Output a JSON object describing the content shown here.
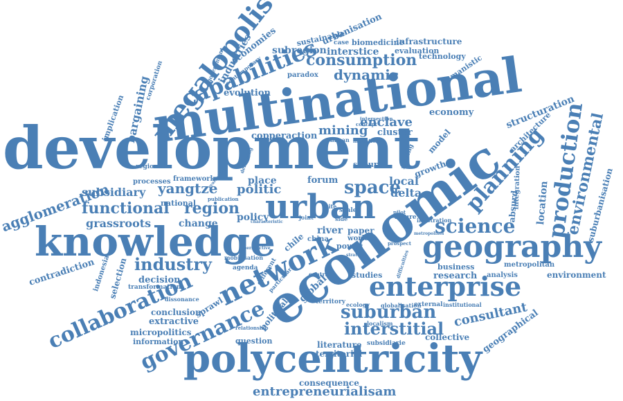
{
  "color": "#4a7fb5",
  "words": {
    "development": "development",
    "multinational": "multinational",
    "economic": "economic",
    "knowledge": "knowledge",
    "polycentricity": "polycentricity",
    "geography": "geography",
    "urban": "urban",
    "enterprise": "enterprise",
    "network": "network",
    "megalopolis": "megalopolis",
    "capabilities": "capabilities",
    "collaboration": "collaboration",
    "governance": "governance",
    "planning": "planning",
    "production": "production",
    "science": "science",
    "suburban": "suburban",
    "interstitial": "interstitial",
    "industry": "industry",
    "functional": "functional",
    "consumption": "consumption",
    "environmental": "environmental",
    "agglomeration": "agglomeration",
    "entrepreneurialisam": "entrepreneurialisam",
    "space": "space",
    "region": "region",
    "yangtze": "yangtze",
    "politic": "politic",
    "consultant": "consultant",
    "dynamic": "dynamic",
    "mining": "mining",
    "enclave": "enclave",
    "grassroots": "grassroots",
    "bargaining": "bargaining",
    "industries": "industries",
    "economies": "economies",
    "subregion": "subregion",
    "interstice": "interstice",
    "urbanisation": "urbanisation",
    "infrastructure": "infrastructure",
    "evaluation": "evaluation",
    "biomedicine": "biomedicine",
    "sustainable": "sustainable",
    "technology": "technology",
    "humanistic": "humanistic",
    "evolution": "evolution",
    "paradox": "paradox",
    "copperaction": "copperaction",
    "cluster": "cluster",
    "economy": "economy",
    "structuration": "structuration",
    "architecture": "architecture",
    "growth": "growth",
    "model": "model",
    "suburb": "suburb",
    "place": "place",
    "forum": "forum",
    "local": "local",
    "delta": "delta",
    "policy": "policy",
    "subsidiary": "subsidiary",
    "processes": "processes",
    "framework": "framework",
    "regional": "regional",
    "national": "national",
    "change": "change",
    "river": "river",
    "paper": "paper",
    "world": "world",
    "china": "china",
    "chile": "chile",
    "location": "location",
    "absurd": "absurd",
    "integration": "integration",
    "suburbanisation": "suburbanisation",
    "metropolitan": "metropolitan",
    "business": "business",
    "research": "research",
    "analysis": "analysis",
    "environment": "environment",
    "contradiction": "contradiction",
    "indonesia": "indonesia",
    "selection": "selection",
    "decision": "decision",
    "transformation": "transformation",
    "conclusion": "conclusion",
    "extractive": "extractive",
    "micropolitics": "micropolitics",
    "information": "information",
    "sprawl": "sprawl",
    "global": "global",
    "political": "political",
    "question": "question",
    "literature": "literature",
    "territorial": "territorial",
    "subsidiarie": "subsidiarie",
    "collective": "collective",
    "geographical": "geographical",
    "consequence": "consequence",
    "studies": "studies",
    "territory": "territory",
    "ecology": "ecology",
    "globalisation": "globalisation",
    "external": "external",
    "institutional": "institutional",
    "localism": "localism",
    "implication": "implication",
    "government": "government",
    "corporation": "corporation",
    "agenda": "agenda",
    "mobilisation": "mobilisation",
    "power": "power",
    "making": "making",
    "central": "central",
    "dissonance": "dissonance",
    "relationship": "relationship",
    "different": "different",
    "particular": "particular",
    "contemporary": "contemporary",
    "publication": "publication",
    "chilean": "chilean",
    "invitation": "invitation",
    "intersection": "intersection",
    "concept": "concept",
    "illustration": "illustration",
    "future": "future",
    "strategic": "strategic",
    "difficulties": "difficulties",
    "prospect": "prospect",
    "pilot": "pilot",
    "joint": "joint",
    "side": "side",
    "site": "site",
    "case": "case",
    "scale": "scale",
    "evaluating": "evaluating",
    "delivering": "delivering",
    "perspective": "perspective",
    "metropolises": "metropolises",
    "characteristic": "characteristic"
  }
}
